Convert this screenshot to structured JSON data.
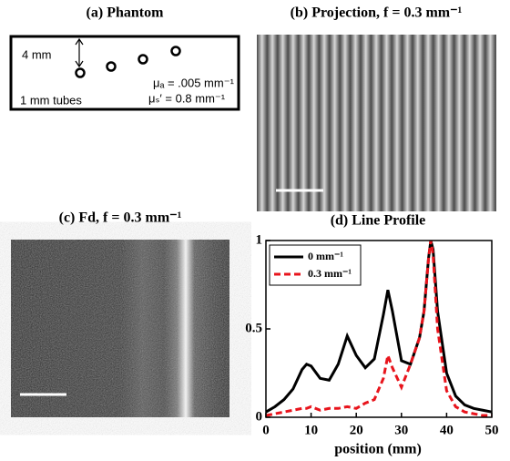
{
  "panels": {
    "a": {
      "title": "(a) Phantom",
      "depth": "4 mm",
      "tubes": "1 mm tubes",
      "mua": "μₐ = .005 mm⁻¹",
      "mus": "μₛ′ = 0.8 mm⁻¹"
    },
    "b": {
      "title": "(b) Projection, f = 0.3 mm⁻¹"
    },
    "c": {
      "title": "(c) Fd, f = 0.3 mm⁻¹"
    }
  },
  "chart_data": {
    "type": "line",
    "title": "(d) Line Profile",
    "x_label": "position (mm)",
    "x": [
      0,
      2,
      4,
      6,
      8,
      9,
      10,
      12,
      14,
      16,
      18,
      20,
      22,
      24,
      26,
      27,
      28,
      30,
      32,
      34,
      35,
      36,
      36.5,
      37,
      38,
      40,
      42,
      44,
      46,
      48,
      50
    ],
    "series": [
      {
        "name": "0 mm⁻¹",
        "color": "#000000",
        "linestyle": "solid",
        "values": [
          0.03,
          0.06,
          0.1,
          0.16,
          0.27,
          0.3,
          0.29,
          0.22,
          0.21,
          0.3,
          0.46,
          0.35,
          0.28,
          0.33,
          0.58,
          0.72,
          0.6,
          0.32,
          0.3,
          0.45,
          0.6,
          0.9,
          1.0,
          0.95,
          0.6,
          0.25,
          0.12,
          0.07,
          0.05,
          0.04,
          0.03
        ]
      },
      {
        "name": "0.3 mm⁻¹",
        "color": "#e8141c",
        "linestyle": "dashed",
        "values": [
          0.01,
          0.02,
          0.03,
          0.04,
          0.05,
          0.05,
          0.06,
          0.04,
          0.05,
          0.05,
          0.06,
          0.05,
          0.08,
          0.1,
          0.22,
          0.35,
          0.28,
          0.17,
          0.3,
          0.45,
          0.6,
          0.9,
          1.0,
          0.92,
          0.5,
          0.15,
          0.06,
          0.03,
          0.02,
          0.01,
          0.01
        ]
      }
    ],
    "xlim": [
      0,
      50
    ],
    "ylim": [
      0,
      1
    ],
    "xticks": [
      0,
      10,
      20,
      30,
      40,
      50
    ],
    "yticks": [
      0,
      0.5,
      1
    ],
    "legend": "upper left"
  }
}
